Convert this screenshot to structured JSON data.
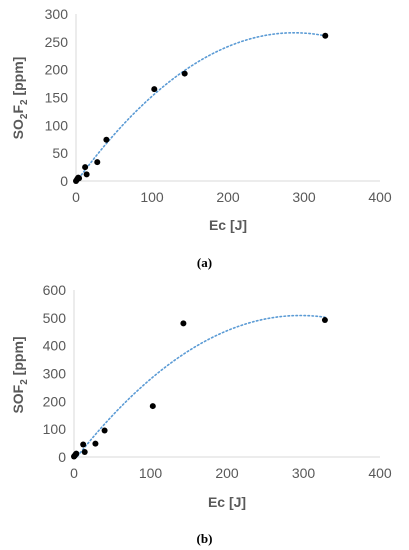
{
  "colors": {
    "axis": "#d9d9d9",
    "text": "#595959",
    "point": "#000000",
    "trend": "#5b9bd5"
  },
  "chart_data": [
    {
      "type": "scatter",
      "panel": "a",
      "caption": "(a)",
      "xlabel": "Ec [J]",
      "ylabel": "SO2F2 [ppm]",
      "ylabel_parts": {
        "base": "SO",
        "sub1": "2",
        "mid": "F",
        "sub2": "2",
        "unit": " [ppm]"
      },
      "xlim": [
        0,
        400
      ],
      "ylim": [
        0,
        300
      ],
      "x_ticks": [
        0,
        100,
        200,
        300,
        400
      ],
      "y_ticks": [
        0,
        50,
        100,
        150,
        200,
        250,
        300
      ],
      "grid": false,
      "points": [
        {
          "x": 0,
          "y": 0
        },
        {
          "x": 1,
          "y": 2
        },
        {
          "x": 2,
          "y": 4
        },
        {
          "x": 3,
          "y": 6
        },
        {
          "x": 4,
          "y": 5
        },
        {
          "x": 12,
          "y": 25
        },
        {
          "x": 14,
          "y": 12
        },
        {
          "x": 28,
          "y": 34
        },
        {
          "x": 40,
          "y": 74
        },
        {
          "x": 103,
          "y": 165
        },
        {
          "x": 143,
          "y": 193
        },
        {
          "x": 328,
          "y": 261
        }
      ],
      "trendline": {
        "type": "polynomial",
        "style": "dotted",
        "x_range": [
          0,
          328
        ]
      }
    },
    {
      "type": "scatter",
      "panel": "b",
      "caption": "(b)",
      "xlabel": "Ec [J]",
      "ylabel": "SOF2 [ppm]",
      "ylabel_parts": {
        "base": "SOF",
        "sub1": "2",
        "unit": " [ppm]"
      },
      "xlim": [
        0,
        400
      ],
      "ylim": [
        0,
        600
      ],
      "x_ticks": [
        0,
        100,
        200,
        300,
        400
      ],
      "y_ticks": [
        0,
        100,
        200,
        300,
        400,
        500,
        600
      ],
      "grid": false,
      "points": [
        {
          "x": 0,
          "y": 2
        },
        {
          "x": 1,
          "y": 5
        },
        {
          "x": 2,
          "y": 9
        },
        {
          "x": 3,
          "y": 12
        },
        {
          "x": 12,
          "y": 45
        },
        {
          "x": 14,
          "y": 18
        },
        {
          "x": 28,
          "y": 48
        },
        {
          "x": 40,
          "y": 95
        },
        {
          "x": 103,
          "y": 183
        },
        {
          "x": 143,
          "y": 480
        },
        {
          "x": 328,
          "y": 492
        }
      ],
      "trendline": {
        "type": "polynomial",
        "style": "dotted",
        "x_range": [
          0,
          328
        ]
      }
    }
  ]
}
